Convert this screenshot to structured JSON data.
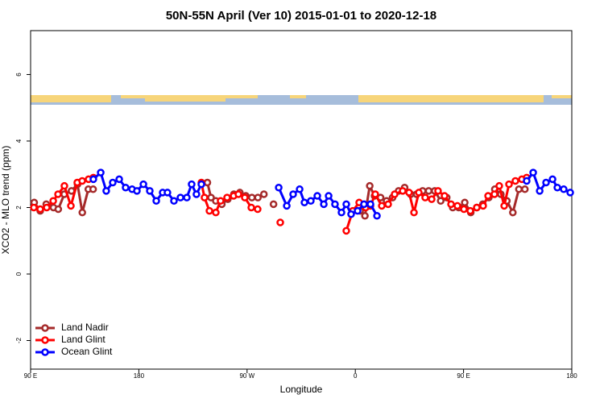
{
  "chart_data": {
    "type": "line",
    "title": "50N-55N April (Ver 10)   2015-01-01 to 2020-12-18",
    "x_label": "Longitude",
    "y_label": "XCO2 - MLO trend (ppm)",
    "xlim": [
      90,
      540
    ],
    "ylim": [
      -2.86,
      7.32
    ],
    "xticks": [
      {
        "value": 90,
        "label": "90 E"
      },
      180,
      {
        "value": 270,
        "label": "90 W"
      },
      {
        "value": 360,
        "label": "0"
      },
      {
        "value": 450,
        "label": "90 E"
      },
      {
        "value": 540,
        "label": "180"
      }
    ],
    "yticks": [
      -2,
      0,
      2,
      4,
      6
    ],
    "legend": "bottom-left",
    "series": [
      {
        "name": "Land Nadir",
        "color": "#a52a2a",
        "x": [
          93,
          98,
          103,
          109,
          113,
          118,
          124,
          129,
          133,
          138,
          142,
          190,
          237,
          240,
          244,
          249,
          254,
          259,
          264,
          269,
          274,
          279,
          284,
          288,
          292,
          296,
          364,
          368,
          372,
          376,
          381,
          386,
          391,
          396,
          401,
          406,
          411,
          416,
          421,
          426,
          431,
          436,
          441,
          446,
          451,
          456,
          461,
          466,
          471,
          476,
          481,
          486,
          491,
          496,
          501
        ],
        "values": [
          2.15,
          1.9,
          2.1,
          2.0,
          1.95,
          2.4,
          2.5,
          2.7,
          1.85,
          2.55,
          2.55,
          null,
          2.75,
          2.3,
          2.2,
          2.1,
          2.25,
          2.4,
          2.45,
          2.35,
          2.3,
          2.3,
          2.4,
          null,
          2.1,
          null,
          1.9,
          1.75,
          2.65,
          2.35,
          2.3,
          2.2,
          2.3,
          2.5,
          2.6,
          2.4,
          2.4,
          2.5,
          2.5,
          2.5,
          2.2,
          2.3,
          2.0,
          2.0,
          2.15,
          1.85,
          2.0,
          2.1,
          2.3,
          2.55,
          2.4,
          2.2,
          1.85,
          2.55,
          2.55
        ]
      },
      {
        "name": "Land Glint",
        "color": "#ff0000",
        "x": [
          92.7,
          98,
          103.4,
          108.8,
          112.8,
          118.1,
          123.5,
          128.8,
          132.9,
          138.2,
          142.2,
          190,
          232,
          234.6,
          238.7,
          244,
          248,
          253.4,
          258.8,
          262.8,
          268.1,
          273.5,
          278.8,
          288,
          297.6,
          320,
          352.5,
          357.9,
          363.2,
          368.6,
          372.6,
          376.6,
          382,
          387.3,
          392.7,
          399.4,
          404.7,
          408.8,
          412.8,
          418.1,
          423.5,
          428.8,
          434.2,
          439.6,
          444.9,
          450.3,
          455.6,
          461,
          466.3,
          470.4,
          475.7,
          479.7,
          483.8,
          487.8,
          493.1,
          498.5,
          502.5
        ],
        "values": [
          2.0,
          1.95,
          2.0,
          2.2,
          2.4,
          2.65,
          2.05,
          2.75,
          2.8,
          2.85,
          2.9,
          null,
          2.75,
          2.3,
          1.9,
          1.85,
          2.2,
          2.3,
          2.35,
          2.4,
          2.3,
          2.0,
          1.95,
          null,
          1.55,
          null,
          1.3,
          1.9,
          2.15,
          2.0,
          2.05,
          2.4,
          2.05,
          2.1,
          2.4,
          2.5,
          2.45,
          1.85,
          2.45,
          2.3,
          2.25,
          2.5,
          2.35,
          2.1,
          2.05,
          1.95,
          1.9,
          2.0,
          2.05,
          2.35,
          2.4,
          2.65,
          2.05,
          2.7,
          2.8,
          2.85,
          2.9
        ]
      },
      {
        "name": "Ocean Glint",
        "color": "#0000ff",
        "x": [
          142.2,
          148.3,
          152.9,
          158.3,
          163.7,
          169,
          174.4,
          178.4,
          183.8,
          189.1,
          194.5,
          199.8,
          203.8,
          209.2,
          214.6,
          219.9,
          223.9,
          227.9,
          232,
          260,
          296.3,
          303,
          308.3,
          313.7,
          317.7,
          323,
          328.4,
          333.8,
          337.8,
          343.1,
          348.5,
          352.5,
          356.5,
          361.9,
          367.2,
          372.6,
          378,
          440,
          502.5,
          507.9,
          513.3,
          518.6,
          524,
          528,
          533.3,
          538.7
        ],
        "values": [
          2.85,
          3.05,
          2.5,
          2.75,
          2.85,
          2.6,
          2.55,
          2.5,
          2.7,
          2.5,
          2.2,
          2.45,
          2.45,
          2.2,
          2.3,
          2.3,
          2.7,
          2.4,
          2.7,
          null,
          2.6,
          2.05,
          2.4,
          2.55,
          2.15,
          2.2,
          2.35,
          2.1,
          2.35,
          2.1,
          1.85,
          2.1,
          1.8,
          1.9,
          2.1,
          2.1,
          1.75,
          null,
          2.8,
          3.05,
          2.5,
          2.75,
          2.85,
          2.6,
          2.55,
          2.45
        ]
      }
    ]
  }
}
